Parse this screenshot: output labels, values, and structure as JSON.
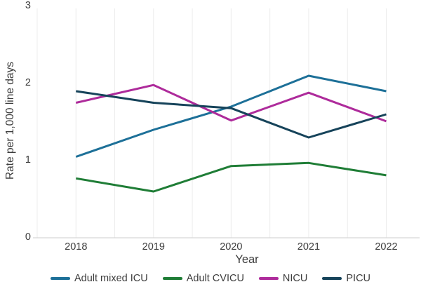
{
  "chart_data": {
    "type": "line",
    "title": "",
    "xlabel": "Year",
    "ylabel": "Rate per 1,000 line days",
    "x": [
      2018,
      2019,
      2020,
      2021,
      2022
    ],
    "series": [
      {
        "name": "Adult mixed ICU",
        "color": "#1d7098",
        "values": [
          1.05,
          1.4,
          1.7,
          2.1,
          1.9
        ]
      },
      {
        "name": "Adult CVICU",
        "color": "#1f7d36",
        "values": [
          0.77,
          0.6,
          0.93,
          0.97,
          0.81
        ]
      },
      {
        "name": "NICU",
        "color": "#ae2b9b",
        "values": [
          1.75,
          1.98,
          1.52,
          1.88,
          1.51
        ]
      },
      {
        "name": "PICU",
        "color": "#16435a",
        "values": [
          1.9,
          1.75,
          1.68,
          1.3,
          1.6
        ]
      }
    ],
    "ylim": [
      0,
      3
    ],
    "yticks": [
      0,
      1,
      2,
      3
    ],
    "xlim": [
      2017.5,
      2022.43
    ],
    "grid": {
      "vertical": true,
      "horizontal": false,
      "step": 0.5,
      "from": 2017.5,
      "to": 2022,
      "color": "#ececec"
    },
    "axis_color": "#d6d6d6",
    "text_color": "#3d3d3d",
    "line_width": 3,
    "legend": {
      "position": "bottom"
    }
  }
}
